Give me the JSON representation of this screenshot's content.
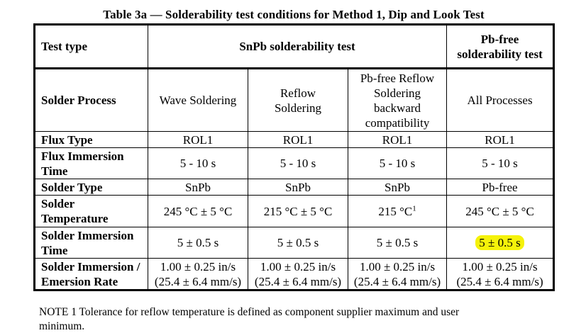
{
  "caption": "Table 3a — Solderability test conditions for Method 1, Dip and Look Test",
  "header": {
    "test_type": "Test type",
    "snpb": "SnPb solderability test",
    "pbfree": "Pb-free solderability test"
  },
  "rows": {
    "process": {
      "label": "Solder Process",
      "c1": "Wave Soldering",
      "c2": "Reflow Soldering",
      "c3": "Pb-free Reflow Soldering backward compatibility",
      "c4": "All Processes"
    },
    "flux": {
      "label": "Flux Type",
      "c1": "ROL1",
      "c2": "ROL1",
      "c3": "ROL1",
      "c4": "ROL1"
    },
    "flux_time": {
      "label": "Flux Immersion Time",
      "c1": "5 - 10 s",
      "c2": "5 - 10 s",
      "c3": "5 - 10 s",
      "c4": "5 - 10 s"
    },
    "solder_type": {
      "label": "Solder Type",
      "c1": "SnPb",
      "c2": "SnPb",
      "c3": "SnPb",
      "c4": "Pb-free"
    },
    "temp": {
      "label": "Solder Temperature",
      "c1": "245 °C ± 5 °C",
      "c2": "215 °C ± 5 °C",
      "c3": "215 °C",
      "c3_note": "1",
      "c4": "245 °C ± 5 °C"
    },
    "immersion_time": {
      "label": "Solder Immersion Time",
      "c1": "5 ± 0.5 s",
      "c2": "5 ± 0.5 s",
      "c3": "5 ± 0.5 s",
      "c4": "5 ± 0.5 s"
    },
    "rate": {
      "label": "Solder Immersion / Emersion Rate",
      "line1": "1.00 ± 0.25 in/s",
      "line2": "(25.4 ± 6.4 mm/s)"
    }
  },
  "highlight_color": "#f5f20a",
  "note": "NOTE 1    Tolerance for reflow temperature is defined as component supplier maximum and user",
  "note_cont": "minimum."
}
